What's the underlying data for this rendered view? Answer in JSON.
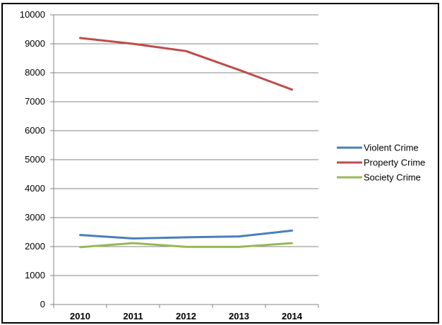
{
  "chart_data": {
    "type": "line",
    "categories": [
      "2010",
      "2011",
      "2012",
      "2013",
      "2014"
    ],
    "series": [
      {
        "name": "Violent Crime",
        "color": "#4a7ebb",
        "values": [
          2400,
          2280,
          2320,
          2350,
          2550
        ]
      },
      {
        "name": "Property Crime",
        "color": "#be4b48",
        "values": [
          9200,
          9000,
          8750,
          8100,
          7420
        ]
      },
      {
        "name": "Society Crime",
        "color": "#98b954",
        "values": [
          1980,
          2120,
          1990,
          1990,
          2120
        ]
      }
    ],
    "ylim": [
      0,
      10000
    ],
    "yticks": [
      "0",
      "1000",
      "2000",
      "3000",
      "4000",
      "5000",
      "6000",
      "7000",
      "8000",
      "9000",
      "10000"
    ],
    "grid": true,
    "legend_position": "right",
    "title": "",
    "xlabel": "",
    "ylabel": ""
  }
}
